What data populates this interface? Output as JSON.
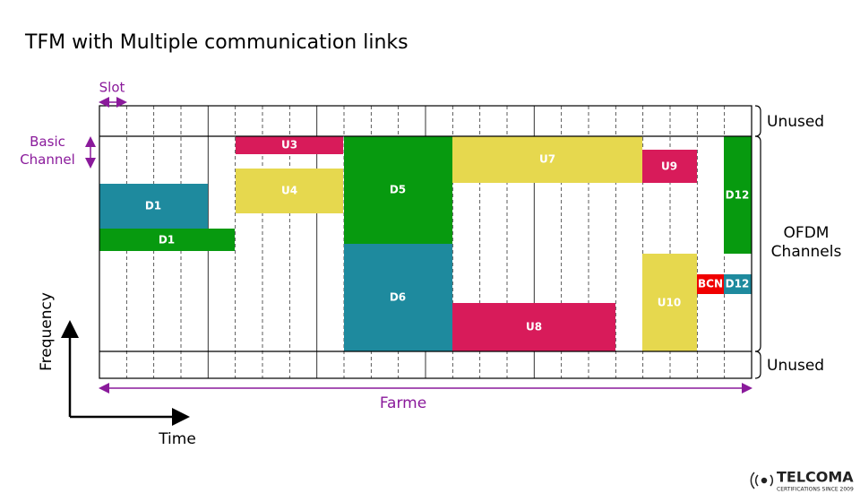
{
  "title": "TFM with Multiple communication links",
  "slot_label": "Slot",
  "basic_channel_label": "Basic Channel",
  "frame_label": "Farme",
  "y_axis_label": "Frequency",
  "x_axis_label": "Time",
  "right_labels": {
    "top": "Unused",
    "middle": "OFDM Channels",
    "bottom": "Unused"
  },
  "blocks": [
    {
      "label": "U3"
    },
    {
      "label": "U4"
    },
    {
      "label": "D1"
    },
    {
      "label": "D1"
    },
    {
      "label": "D5"
    },
    {
      "label": "D6"
    },
    {
      "label": "U7"
    },
    {
      "label": "U8"
    },
    {
      "label": "U9"
    },
    {
      "label": "U10"
    },
    {
      "label": "BCN"
    },
    {
      "label": "D12"
    },
    {
      "label": "D12"
    }
  ],
  "logo": {
    "name": "TELCOMA",
    "tagline": "CERTIFICATIONS SINCE 2009"
  }
}
